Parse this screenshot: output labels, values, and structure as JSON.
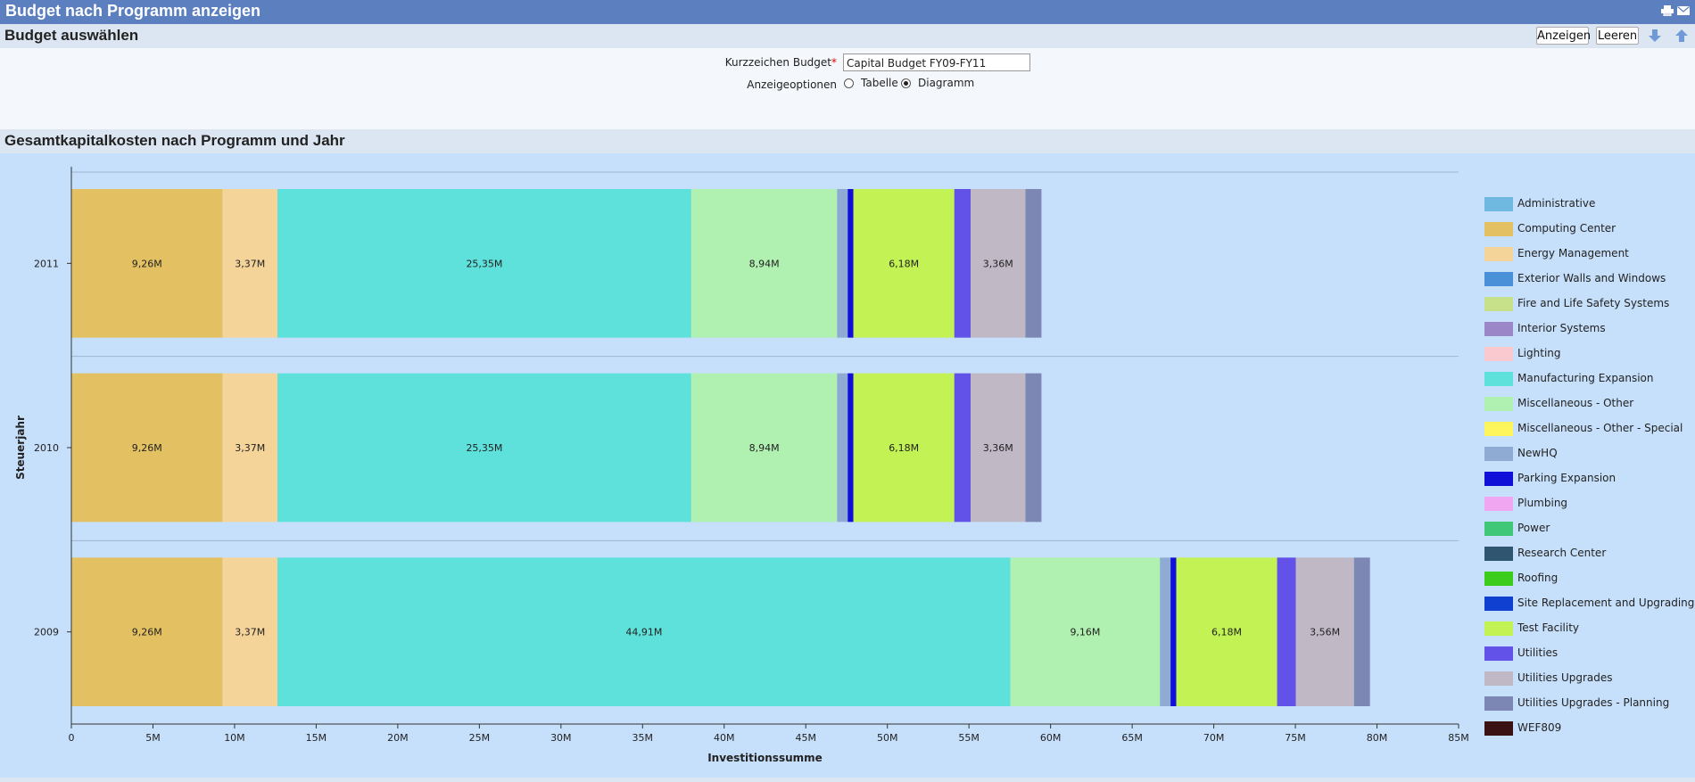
{
  "window": {
    "title": "Budget nach Programm anzeigen"
  },
  "select_section": {
    "title": "Budget auswählen"
  },
  "toolbar": {
    "show_label": "Anzeigen",
    "clear_label": "Leeren"
  },
  "form": {
    "budget_label": "Kurzzeichen Budget",
    "budget_required_mark": "*",
    "budget_value": "Capital Budget FY09-FY11",
    "display_label": "Anzeigeoptionen",
    "option_table": "Tabelle",
    "option_chart": "Diagramm",
    "selected_option": "Diagramm"
  },
  "chart_section": {
    "title": "Gesamtkapitalkosten nach Programm und Jahr"
  },
  "icons": [
    "print-icon",
    "email-icon",
    "arrow-down-icon",
    "arrow-up-icon"
  ],
  "chart_data": {
    "type": "bar",
    "orientation": "horizontal",
    "stacked": true,
    "xlabel": "Investitionssumme",
    "ylabel": "Steuerjahr",
    "xlim": [
      0,
      85
    ],
    "unit": "M",
    "x_ticks": [
      "0",
      "5M",
      "10M",
      "15M",
      "20M",
      "25M",
      "30M",
      "35M",
      "40M",
      "45M",
      "50M",
      "55M",
      "60M",
      "65M",
      "70M",
      "75M",
      "80M",
      "85M"
    ],
    "categories": [
      "2011",
      "2010",
      "2009"
    ],
    "grid": "horizontal separators between years",
    "legend_position": "right",
    "series": [
      {
        "name": "Administrative",
        "color": "#6fb8e0",
        "values": [
          0,
          0,
          0
        ],
        "labels": [
          "",
          "",
          ""
        ]
      },
      {
        "name": "Computing Center",
        "color": "#e3c163",
        "values": [
          9.26,
          9.26,
          9.26
        ],
        "labels": [
          "9,26M",
          "9,26M",
          "9,26M"
        ]
      },
      {
        "name": "Energy Management",
        "color": "#f5d49a",
        "values": [
          3.37,
          3.37,
          3.37
        ],
        "labels": [
          "3,37M",
          "3,37M",
          "3,37M"
        ]
      },
      {
        "name": "Exterior Walls and Windows",
        "color": "#4a90d9",
        "values": [
          0,
          0,
          0
        ],
        "labels": [
          "",
          "",
          ""
        ]
      },
      {
        "name": "Fire and Life Safety Systems",
        "color": "#c7e08a",
        "values": [
          0,
          0,
          0
        ],
        "labels": [
          "",
          "",
          ""
        ]
      },
      {
        "name": "Interior Systems",
        "color": "#9b86c7",
        "values": [
          0,
          0,
          0
        ],
        "labels": [
          "",
          "",
          ""
        ]
      },
      {
        "name": "Lighting",
        "color": "#f9c9cf",
        "values": [
          0,
          0,
          0
        ],
        "labels": [
          "",
          "",
          ""
        ]
      },
      {
        "name": "Manufacturing Expansion",
        "color": "#5ee0db",
        "values": [
          25.35,
          25.35,
          44.91
        ],
        "labels": [
          "25,35M",
          "25,35M",
          "44,91M"
        ]
      },
      {
        "name": "Miscellaneous - Other",
        "color": "#b0f0b0",
        "values": [
          8.94,
          8.94,
          9.16
        ],
        "labels": [
          "8,94M",
          "8,94M",
          "9,16M"
        ]
      },
      {
        "name": "Miscellaneous - Other - Special",
        "color": "#fdf55b",
        "values": [
          0,
          0,
          0
        ],
        "labels": [
          "",
          "",
          ""
        ]
      },
      {
        "name": "NewHQ",
        "color": "#8fabd3",
        "values": [
          0.65,
          0.65,
          0.65
        ],
        "labels": [
          "",
          "",
          ""
        ]
      },
      {
        "name": "Parking Expansion",
        "color": "#1010d8",
        "values": [
          0.35,
          0.35,
          0.35
        ],
        "labels": [
          "",
          "",
          ""
        ]
      },
      {
        "name": "Plumbing",
        "color": "#f0a6f0",
        "values": [
          0,
          0,
          0
        ],
        "labels": [
          "",
          "",
          ""
        ]
      },
      {
        "name": "Power",
        "color": "#40c878",
        "values": [
          0,
          0,
          0
        ],
        "labels": [
          "",
          "",
          ""
        ]
      },
      {
        "name": "Research Center",
        "color": "#2f5570",
        "values": [
          0,
          0,
          0
        ],
        "labels": [
          "",
          "",
          ""
        ]
      },
      {
        "name": "Roofing",
        "color": "#3ccc1c",
        "values": [
          0,
          0,
          0
        ],
        "labels": [
          "",
          "",
          ""
        ]
      },
      {
        "name": "Site Replacement and Upgrading",
        "color": "#1040d0",
        "values": [
          0,
          0,
          0
        ],
        "labels": [
          "",
          "",
          ""
        ]
      },
      {
        "name": "Test Facility",
        "color": "#c3f255",
        "values": [
          6.18,
          6.18,
          6.18
        ],
        "labels": [
          "6,18M",
          "6,18M",
          "6,18M"
        ]
      },
      {
        "name": "Utilities",
        "color": "#6352e8",
        "values": [
          1.0,
          1.0,
          1.15
        ],
        "labels": [
          "",
          "",
          ""
        ]
      },
      {
        "name": "Utilities Upgrades",
        "color": "#c1b8c6",
        "values": [
          3.36,
          3.36,
          3.56
        ],
        "labels": [
          "3,36M",
          "3,36M",
          "3,56M"
        ]
      },
      {
        "name": "Utilities Upgrades - Planning",
        "color": "#7c88b3",
        "values": [
          0.98,
          0.98,
          0.98
        ],
        "labels": [
          "",
          "",
          ""
        ]
      },
      {
        "name": "WEF809",
        "color": "#3a1214",
        "values": [
          0,
          0,
          0
        ],
        "labels": [
          "",
          "",
          ""
        ]
      }
    ]
  }
}
